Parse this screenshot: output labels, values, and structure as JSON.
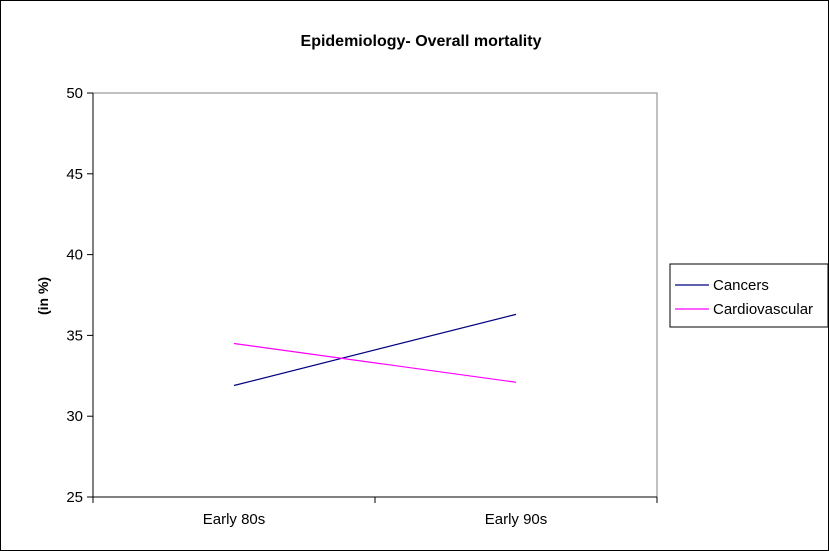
{
  "chart_data": {
    "type": "line",
    "title": "Epidemiology- Overall mortality",
    "xlabel": "",
    "ylabel": "(in %)",
    "categories": [
      "Early 80s",
      "Early 90s"
    ],
    "ylim": [
      25,
      50
    ],
    "yticks": [
      25,
      30,
      35,
      40,
      45,
      50
    ],
    "grid": false,
    "legend_position": "right",
    "series": [
      {
        "name": "Cancers",
        "values": [
          31.9,
          36.3
        ],
        "color": "#000080"
      },
      {
        "name": "Cardiovascular",
        "values": [
          34.5,
          32.1
        ],
        "color": "#ff00ff"
      }
    ]
  }
}
